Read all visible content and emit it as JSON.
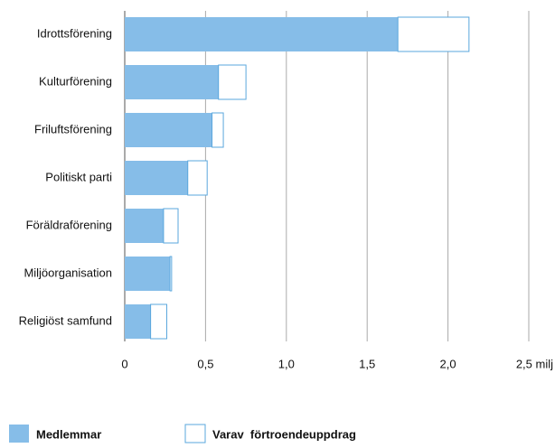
{
  "chart_data": {
    "type": "stacked-barh",
    "categories": [
      "Idrottsförening",
      "Kulturförening",
      "Friluftsförening",
      "Politiskt  parti",
      "Föräldraförening",
      "Miljöorganisation",
      "Religiöst  samfund"
    ],
    "series": [
      {
        "name": "Medlemmar",
        "color": "#86bde8",
        "values": [
          1.69,
          0.58,
          0.54,
          0.39,
          0.24,
          0.28,
          0.16
        ]
      },
      {
        "name": "Varav  förtroendeuppdrag",
        "color": "#ffffff",
        "values": [
          0.44,
          0.17,
          0.07,
          0.12,
          0.09,
          0.01,
          0.1
        ]
      }
    ],
    "xlim": [
      0,
      2.5
    ],
    "xticks": [
      0,
      {
        "value": 0.5,
        "label": "0,5"
      },
      {
        "value": 1.0,
        "label": "1,0"
      },
      {
        "value": 1.5,
        "label": "1,5"
      },
      {
        "value": 2.0,
        "label": "2,0"
      },
      {
        "value": 2.5,
        "label": "2,5 milj"
      }
    ],
    "grid": true,
    "legend": "bottom"
  }
}
